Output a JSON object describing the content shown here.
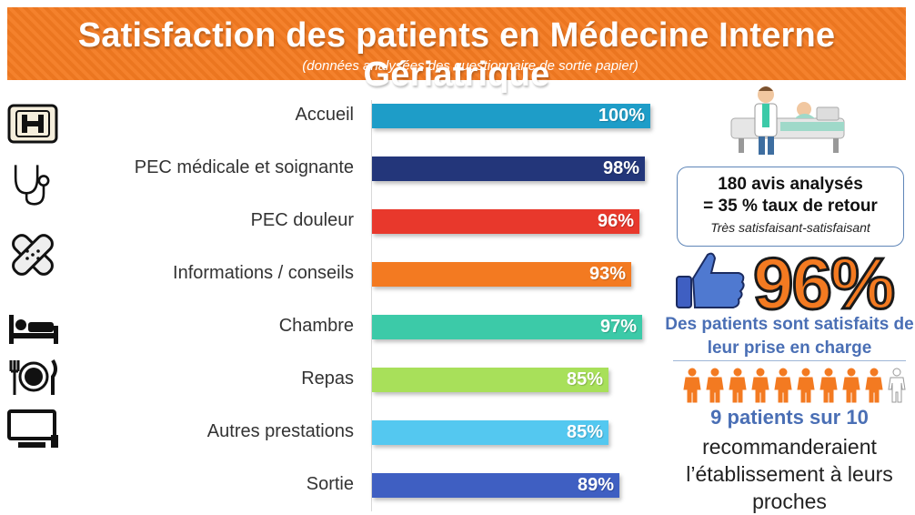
{
  "header": {
    "title": "Satisfaction des patients en Médecine Interne Gériatrique",
    "subtitle": "(données analysées des questionnaire de sortie papier)"
  },
  "chart_data": {
    "type": "bar",
    "orientation": "horizontal",
    "categories": [
      "Accueil",
      "PEC médicale et soignante",
      "PEC douleur",
      "Informations / conseils",
      "Chambre",
      "Repas",
      "Autres prestations",
      "Sortie"
    ],
    "values": [
      100,
      98,
      96,
      93,
      97,
      85,
      85,
      89
    ],
    "value_labels": [
      "100%",
      "98%",
      "96%",
      "93%",
      "97%",
      "85%",
      "85%",
      "89%"
    ],
    "colors": [
      "#1e9dc8",
      "#23367a",
      "#e8382c",
      "#f37a21",
      "#3ccaa8",
      "#a8e05a",
      "#54c8f0",
      "#3f5fc2"
    ],
    "xlim": [
      0,
      100
    ],
    "icons": [
      "hospital-icon",
      "stethoscope-icon",
      "bandage-icon",
      "info-icon",
      "bed-icon",
      "meal-icon",
      "tv-icon",
      "exit-icon"
    ]
  },
  "summary": {
    "reviews": "180 avis analysés",
    "return_rate": "= 35 % taux de retour",
    "scale_note": "Très satisfaisant-satisfaisant",
    "big_percent": "96%",
    "satisfied_text": "Des patients sont satisfaits de leur prise en charge",
    "patients_ratio": "9 patients sur 10",
    "recommend_text": "recommanderaient l’établissement à leurs proches",
    "people_filled": 9,
    "people_total": 10
  },
  "colors": {
    "accent": "#f37a21",
    "text_blue": "#4a6fb5"
  }
}
